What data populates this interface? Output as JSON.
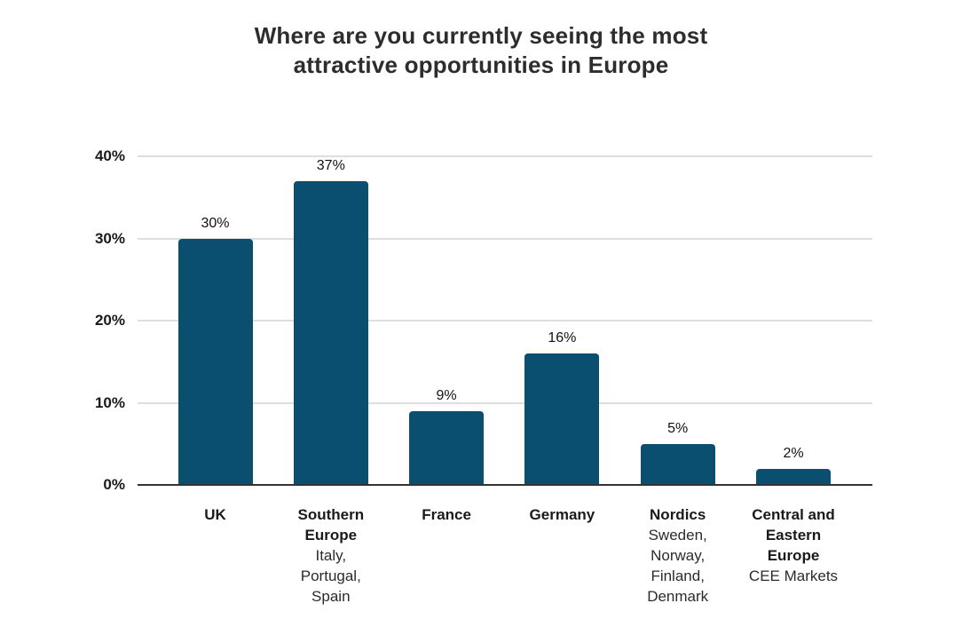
{
  "title_lines": [
    "Where are you currently seeing the most",
    "attractive opportunities in Europe"
  ],
  "chart_data": {
    "type": "bar",
    "title": "Where are you currently seeing the most attractive opportunities in Europe",
    "categories": [
      "UK",
      "Southern Europe",
      "France",
      "Germany",
      "Nordics",
      "Central and Eastern Europe"
    ],
    "category_sublabels": [
      "",
      "Italy, Portugal, Spain",
      "",
      "",
      "Sweden, Norway, Finland, Denmark",
      "CEE Markets"
    ],
    "category_label_lines": [
      [
        "UK"
      ],
      [
        "Southern",
        "Europe"
      ],
      [
        "France"
      ],
      [
        "Germany"
      ],
      [
        "Nordics"
      ],
      [
        "Central and",
        "Eastern",
        "Europe"
      ]
    ],
    "category_sublabel_lines": [
      [],
      [
        "Italy,",
        "Portugal,",
        "Spain"
      ],
      [],
      [],
      [
        "Sweden,",
        "Norway,",
        "Finland,",
        "Denmark"
      ],
      [
        "CEE Markets"
      ]
    ],
    "values": [
      30,
      37,
      9,
      16,
      5,
      2
    ],
    "value_labels": [
      "30%",
      "37%",
      "9%",
      "16%",
      "5%",
      "2%"
    ],
    "xlabel": "",
    "ylabel": "",
    "ylim": [
      0,
      40
    ],
    "yticks": [
      {
        "value": 0,
        "label": "0%"
      },
      {
        "value": 10,
        "label": "10%"
      },
      {
        "value": 20,
        "label": "20%"
      },
      {
        "value": 30,
        "label": "30%"
      },
      {
        "value": 40,
        "label": "40%"
      }
    ],
    "grid": true,
    "legend": false,
    "colors": {
      "bar": "#0A4E70",
      "gridline": "#dedede",
      "axis_line": "#333333",
      "title": "#2d2d2d",
      "text": "#1a1a1a"
    }
  }
}
